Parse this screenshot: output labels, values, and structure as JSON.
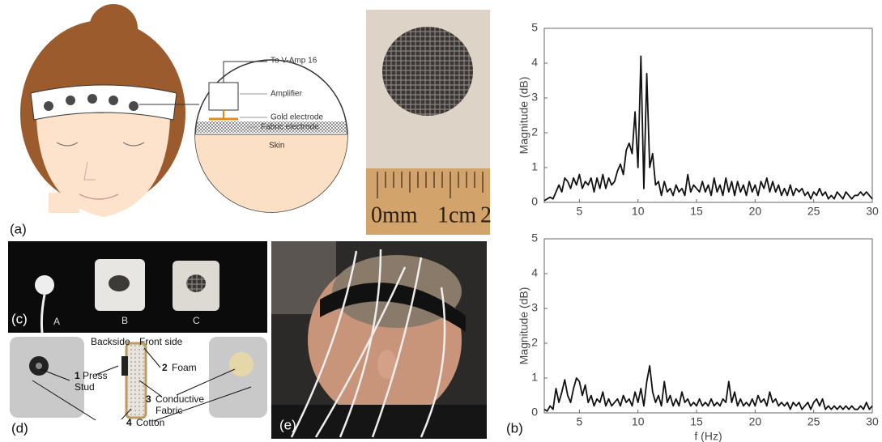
{
  "panel_labels": {
    "a": "(a)",
    "b": "(b)",
    "c": "(c)",
    "d": "(d)",
    "e": "(e)"
  },
  "diagram_a": {
    "callouts": [
      "To V-Amp 16",
      "Amplifier",
      "Gold electrode",
      "Fabric electrode",
      "Skin"
    ]
  },
  "ruler_labels": [
    "0mm",
    "1cm",
    "2"
  ],
  "panel_c": {
    "labels": [
      "A",
      "B",
      "C"
    ]
  },
  "diagram_d": {
    "sides": [
      "Backside",
      "Front side"
    ],
    "items": [
      {
        "number": "1",
        "lines": [
          "Press",
          "Stud"
        ]
      },
      {
        "number": "2",
        "lines": [
          "Foam"
        ]
      },
      {
        "number": "3",
        "lines": [
          "Conductive",
          "Fabric"
        ]
      },
      {
        "number": "4",
        "lines": [
          "Cotton"
        ]
      }
    ]
  },
  "chart_data": [
    {
      "type": "line",
      "y_label": "Magnitude (dB)",
      "color": "#111111",
      "xlim": [
        2,
        30
      ],
      "ylim": [
        0,
        5
      ],
      "xticks": [
        5,
        10,
        15,
        20,
        25,
        30
      ],
      "yticks": [
        0,
        1,
        2,
        3,
        4,
        5
      ],
      "x": [
        2,
        2.25,
        2.5,
        2.75,
        3,
        3.25,
        3.5,
        3.75,
        4,
        4.25,
        4.5,
        4.75,
        5,
        5.25,
        5.5,
        5.75,
        6,
        6.25,
        6.5,
        6.75,
        7,
        7.25,
        7.5,
        7.75,
        8,
        8.25,
        8.5,
        8.75,
        9,
        9.25,
        9.5,
        9.75,
        10,
        10.25,
        10.5,
        10.75,
        11,
        11.25,
        11.5,
        11.75,
        12,
        12.25,
        12.5,
        12.75,
        13,
        13.25,
        13.5,
        13.75,
        14,
        14.25,
        14.5,
        14.75,
        15,
        15.25,
        15.5,
        15.75,
        16,
        16.25,
        16.5,
        16.75,
        17,
        17.25,
        17.5,
        17.75,
        18,
        18.25,
        18.5,
        18.75,
        19,
        19.25,
        19.5,
        19.75,
        20,
        20.25,
        20.5,
        20.75,
        21,
        21.25,
        21.5,
        21.75,
        22,
        22.25,
        22.5,
        22.75,
        23,
        23.25,
        23.5,
        23.75,
        24,
        24.25,
        24.5,
        24.75,
        25,
        25.25,
        25.5,
        25.75,
        26,
        26.25,
        26.5,
        26.75,
        27,
        27.25,
        27.5,
        27.75,
        28,
        28.25,
        28.5,
        28.75,
        29,
        29.25,
        29.5,
        29.75,
        30
      ],
      "values": [
        0.05,
        0.1,
        0.15,
        0.1,
        0.3,
        0.5,
        0.3,
        0.7,
        0.6,
        0.4,
        0.7,
        0.5,
        0.8,
        0.4,
        0.6,
        0.5,
        0.7,
        0.3,
        0.7,
        0.4,
        0.8,
        0.4,
        0.7,
        0.5,
        0.6,
        0.9,
        1.1,
        0.8,
        1.5,
        1.7,
        1.4,
        2.6,
        1.0,
        4.2,
        0.4,
        3.7,
        1.0,
        1.4,
        0.5,
        0.6,
        0.2,
        0.6,
        0.3,
        0.4,
        0.2,
        0.5,
        0.3,
        0.4,
        0.2,
        0.8,
        0.3,
        0.5,
        0.4,
        0.3,
        0.6,
        0.3,
        0.5,
        0.2,
        0.7,
        0.3,
        0.5,
        0.2,
        0.7,
        0.3,
        0.6,
        0.2,
        0.6,
        0.3,
        0.5,
        0.2,
        0.6,
        0.3,
        0.5,
        0.2,
        0.6,
        0.4,
        0.7,
        0.3,
        0.6,
        0.3,
        0.5,
        0.2,
        0.4,
        0.2,
        0.5,
        0.2,
        0.4,
        0.3,
        0.4,
        0.2,
        0.3,
        0.1,
        0.3,
        0.2,
        0.4,
        0.2,
        0.3,
        0.1,
        0.2,
        0.1,
        0.3,
        0.2,
        0.1,
        0.3,
        0.2,
        0.1,
        0.2,
        0.2,
        0.3,
        0.2,
        0.3,
        0.2,
        0.1
      ]
    },
    {
      "type": "line",
      "y_label": "Magnitude (dB)",
      "x_label": "f (Hz)",
      "color": "#111111",
      "xlim": [
        2,
        30
      ],
      "ylim": [
        0,
        5
      ],
      "xticks": [
        5,
        10,
        15,
        20,
        25,
        30
      ],
      "yticks": [
        0,
        1,
        2,
        3,
        4,
        5
      ],
      "x": [
        2,
        2.25,
        2.5,
        2.75,
        3,
        3.25,
        3.5,
        3.75,
        4,
        4.25,
        4.5,
        4.75,
        5,
        5.25,
        5.5,
        5.75,
        6,
        6.25,
        6.5,
        6.75,
        7,
        7.25,
        7.5,
        7.75,
        8,
        8.25,
        8.5,
        8.75,
        9,
        9.25,
        9.5,
        9.75,
        10,
        10.25,
        10.5,
        10.75,
        11,
        11.25,
        11.5,
        11.75,
        12,
        12.25,
        12.5,
        12.75,
        13,
        13.25,
        13.5,
        13.75,
        14,
        14.25,
        14.5,
        14.75,
        15,
        15.25,
        15.5,
        15.75,
        16,
        16.25,
        16.5,
        16.75,
        17,
        17.25,
        17.5,
        17.75,
        18,
        18.25,
        18.5,
        18.75,
        19,
        19.25,
        19.5,
        19.75,
        20,
        20.25,
        20.5,
        20.75,
        21,
        21.25,
        21.5,
        21.75,
        22,
        22.25,
        22.5,
        22.75,
        23,
        23.25,
        23.5,
        23.75,
        24,
        24.25,
        24.5,
        24.75,
        25,
        25.25,
        25.5,
        25.75,
        26,
        26.25,
        26.5,
        26.75,
        27,
        27.25,
        27.5,
        27.75,
        28,
        28.25,
        28.5,
        28.75,
        29,
        29.25,
        29.5,
        29.75,
        30
      ],
      "values": [
        0.1,
        0.05,
        0.2,
        0.1,
        0.7,
        0.3,
        0.6,
        0.95,
        0.5,
        0.3,
        0.7,
        1.0,
        0.9,
        0.5,
        0.8,
        0.3,
        0.5,
        0.2,
        0.4,
        0.3,
        0.6,
        0.2,
        0.4,
        0.2,
        0.3,
        0.4,
        0.2,
        0.5,
        0.3,
        0.4,
        0.2,
        0.6,
        0.3,
        0.7,
        0.2,
        0.9,
        1.35,
        0.6,
        0.3,
        0.5,
        0.2,
        0.9,
        0.3,
        0.5,
        0.2,
        0.4,
        0.2,
        0.6,
        0.3,
        0.4,
        0.2,
        0.3,
        0.2,
        0.4,
        0.2,
        0.3,
        0.2,
        0.4,
        0.2,
        0.3,
        0.2,
        0.4,
        0.3,
        0.9,
        0.3,
        0.6,
        0.2,
        0.4,
        0.2,
        0.3,
        0.2,
        0.4,
        0.2,
        0.5,
        0.3,
        0.4,
        0.2,
        0.6,
        0.3,
        0.4,
        0.2,
        0.3,
        0.2,
        0.3,
        0.1,
        0.3,
        0.2,
        0.3,
        0.1,
        0.2,
        0.3,
        0.1,
        0.3,
        0.4,
        0.2,
        0.4,
        0.1,
        0.2,
        0.1,
        0.2,
        0.1,
        0.2,
        0.1,
        0.2,
        0.1,
        0.2,
        0.1,
        0.1,
        0.2,
        0.1,
        0.3,
        0.1,
        0.2
      ]
    }
  ]
}
